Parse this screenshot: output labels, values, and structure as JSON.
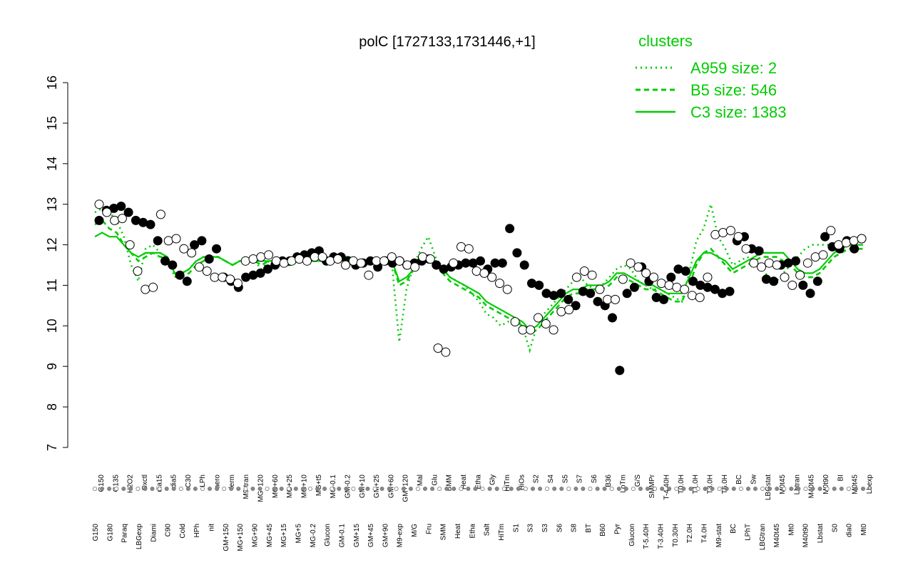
{
  "chart_data": {
    "type": "line",
    "title": "polC [1727133,1731446,+1]",
    "xlabel": "",
    "ylabel": "",
    "ylim": [
      7,
      16
    ],
    "yticks": [
      7,
      8,
      9,
      10,
      11,
      12,
      13,
      14,
      15,
      16
    ],
    "grid": false,
    "legend": {
      "title": "clusters",
      "placement": "top-right",
      "color": "#00cc00",
      "entries": [
        {
          "label": "A959 size: 2",
          "style": "dotted"
        },
        {
          "label": "B5 size: 546",
          "style": "dashed"
        },
        {
          "label": "C3 size: 1383",
          "style": "solid"
        }
      ]
    },
    "x_tick_labels": [
      {
        "top": "G150",
        "bottom": "G150"
      },
      {
        "top": "G135",
        "bottom": "G180"
      },
      {
        "top": "H2O2",
        "bottom": "Paraq"
      },
      {
        "top": "Oxctl",
        "bottom": "LBGexp"
      },
      {
        "top": "dia15",
        "bottom": "Diami"
      },
      {
        "top": "dia5",
        "bottom": "C90"
      },
      {
        "top": "C30",
        "bottom": "Cold"
      },
      {
        "top": "LPh",
        "bottom": "HPh"
      },
      {
        "top": "aero",
        "bottom": "nit"
      },
      {
        "top": "ferm",
        "bottom": "GM+150"
      },
      {
        "top": "M9-tran",
        "bottom": "MG+150"
      },
      {
        "top": "MG+120",
        "bottom": "MG+90"
      },
      {
        "top": "MG+60",
        "bottom": "MG+45"
      },
      {
        "top": "MG+25",
        "bottom": "MG+15"
      },
      {
        "top": "MG+10",
        "bottom": "MG+5"
      },
      {
        "top": "MG+t5",
        "bottom": "MG-0.2"
      },
      {
        "top": "MG-0.1",
        "bottom": "Glucon"
      },
      {
        "top": "GM-0.2",
        "bottom": "GM-0.1"
      },
      {
        "top": "GM+10",
        "bottom": "GM+15"
      },
      {
        "top": "GM+25",
        "bottom": "GM+45"
      },
      {
        "top": "GM+60",
        "bottom": "GM+90"
      },
      {
        "top": "GM+120",
        "bottom": "M9-exp"
      },
      {
        "top": "Mal",
        "bottom": "M/G"
      },
      {
        "top": "Glu",
        "bottom": "Fru"
      },
      {
        "top": "BMM",
        "bottom": "SMM"
      },
      {
        "top": "Heat",
        "bottom": "Heat"
      },
      {
        "top": "Etha",
        "bottom": "Etha"
      },
      {
        "top": "Gly",
        "bottom": "Salt"
      },
      {
        "top": "HiTm",
        "bottom": "HiTm"
      },
      {
        "top": "HiOs",
        "bottom": "S1"
      },
      {
        "top": "S2",
        "bottom": "S3"
      },
      {
        "top": "S4",
        "bottom": "S3"
      },
      {
        "top": "S5",
        "bottom": "S6"
      },
      {
        "top": "S7",
        "bottom": "S8"
      },
      {
        "top": "S6",
        "bottom": "BT"
      },
      {
        "top": "B36",
        "bottom": "B60"
      },
      {
        "top": "LoTm",
        "bottom": "Pyr"
      },
      {
        "top": "G/S",
        "bottom": "Glucon"
      },
      {
        "top": "SMMPr",
        "bottom": "T-5.40H"
      },
      {
        "top": "T-4.40H",
        "bottom": "T-3.40H"
      },
      {
        "top": "T0.0H",
        "bottom": "T0.30H"
      },
      {
        "top": "T1.0H",
        "bottom": "T2.0H"
      },
      {
        "top": "T3.0H",
        "bottom": "T4.0H"
      },
      {
        "top": "T5.0H",
        "bottom": "M9-stat"
      },
      {
        "top": "BC",
        "bottom": "BC"
      },
      {
        "top": "Sw",
        "bottom": "LPhT"
      },
      {
        "top": "LBGstat",
        "bottom": "LBGtran"
      },
      {
        "top": "M0t45",
        "bottom": "M40t45"
      },
      {
        "top": "Lbtran",
        "bottom": "Mt0"
      },
      {
        "top": "M40t45",
        "bottom": "M40t90"
      },
      {
        "top": "M0t90",
        "bottom": "Lbstat"
      },
      {
        "top": "BI",
        "bottom": "S0"
      },
      {
        "top": "M0t45",
        "bottom": "dia0"
      },
      {
        "top": "Lbexp",
        "bottom": "Mt0"
      }
    ],
    "series": [
      {
        "name": "C3 size: 1383",
        "style": "solid",
        "color": "#00cc00",
        "values": [
          12.2,
          12.3,
          12.2,
          12.2,
          12.0,
          11.8,
          11.7,
          11.8,
          11.8,
          11.8,
          11.7,
          11.3,
          11.3,
          11.4,
          11.6,
          11.7,
          11.7,
          11.7,
          11.6,
          11.5,
          11.6,
          11.6,
          11.6,
          11.6,
          11.6,
          11.6,
          11.5,
          11.5,
          11.6,
          11.6,
          11.6,
          11.6,
          11.6,
          11.6,
          11.7,
          11.7,
          11.6,
          11.6,
          11.6,
          11.6,
          11.6,
          11.6,
          11.1,
          11.2,
          11.4,
          11.6,
          11.6,
          11.6,
          11.4,
          11.2,
          11.1,
          11.0,
          10.9,
          10.8,
          10.6,
          10.5,
          10.4,
          10.3,
          10.2,
          10.1,
          9.9,
          10.0,
          10.2,
          10.4,
          10.6,
          10.8,
          10.9,
          10.9,
          11.0,
          11.0,
          11.0,
          11.1,
          11.3,
          11.3,
          11.2,
          11.1,
          11.0,
          11.0,
          10.9,
          10.8,
          10.8,
          10.8,
          11.2,
          11.6,
          11.8,
          11.8,
          11.7,
          11.6,
          11.4,
          11.5,
          11.6,
          11.7,
          11.8,
          11.8,
          11.8,
          11.8,
          11.6,
          11.4,
          11.3,
          11.3,
          11.4,
          11.6,
          11.8,
          11.9,
          12.0,
          12.0,
          12.0
        ]
      },
      {
        "name": "B5 size: 546",
        "style": "dashed",
        "color": "#00cc00",
        "values": [
          12.5,
          12.6,
          12.4,
          12.3,
          12.0,
          11.8,
          11.6,
          11.7,
          11.8,
          11.7,
          11.7,
          11.3,
          11.2,
          11.3,
          11.5,
          11.6,
          11.7,
          11.7,
          11.6,
          11.5,
          11.6,
          11.6,
          11.6,
          11.5,
          11.6,
          11.6,
          11.5,
          11.5,
          11.6,
          11.6,
          11.6,
          11.6,
          11.6,
          11.6,
          11.7,
          11.7,
          11.6,
          11.5,
          11.6,
          11.6,
          11.6,
          11.6,
          11.0,
          11.1,
          11.4,
          11.6,
          11.6,
          11.6,
          11.3,
          11.1,
          11.0,
          10.9,
          10.8,
          10.7,
          10.5,
          10.4,
          10.3,
          10.2,
          10.1,
          10.0,
          9.8,
          9.9,
          10.1,
          10.3,
          10.5,
          10.7,
          10.8,
          10.8,
          10.9,
          10.9,
          10.9,
          11.0,
          11.2,
          11.2,
          11.1,
          11.0,
          10.9,
          10.9,
          10.8,
          10.7,
          10.6,
          10.6,
          11.0,
          11.5,
          11.8,
          11.9,
          11.7,
          11.5,
          11.3,
          11.4,
          11.5,
          11.6,
          11.7,
          11.7,
          11.7,
          11.6,
          11.5,
          11.3,
          11.2,
          11.2,
          11.3,
          11.5,
          11.7,
          11.8,
          11.9,
          11.9,
          11.9
        ]
      },
      {
        "name": "A959 size: 2",
        "style": "dotted",
        "color": "#00cc00",
        "values": [
          12.8,
          12.9,
          12.8,
          12.6,
          12.2,
          11.5,
          11.1,
          11.9,
          12.0,
          11.8,
          11.7,
          11.2,
          11.3,
          11.4,
          11.6,
          11.7,
          11.7,
          11.7,
          11.6,
          11.5,
          11.6,
          11.6,
          11.6,
          11.4,
          11.6,
          11.6,
          11.5,
          11.6,
          11.6,
          11.6,
          11.6,
          11.6,
          11.6,
          11.6,
          11.7,
          11.7,
          11.6,
          11.6,
          11.6,
          11.6,
          11.6,
          11.5,
          9.6,
          10.9,
          11.5,
          11.9,
          12.2,
          11.7,
          11.4,
          11.2,
          11.1,
          11.0,
          10.8,
          10.6,
          10.3,
          10.2,
          10.0,
          10.1,
          10.2,
          10.0,
          9.4,
          10.0,
          10.3,
          10.5,
          10.7,
          10.9,
          11.1,
          11.2,
          11.0,
          10.9,
          11.0,
          11.2,
          11.4,
          11.5,
          11.4,
          11.1,
          11.0,
          10.9,
          10.9,
          10.8,
          10.7,
          10.6,
          11.3,
          12.1,
          12.4,
          13.0,
          12.2,
          11.9,
          11.5,
          11.6,
          11.7,
          11.6,
          11.4,
          11.2,
          11.1,
          11.3,
          11.5,
          11.7,
          11.9,
          12.0,
          12.0,
          12.0,
          12.0,
          12.0,
          12.0,
          12.1,
          12.1
        ]
      }
    ],
    "points": {
      "filled": [
        12.6,
        12.85,
        12.9,
        12.95,
        12.8,
        12.6,
        12.55,
        12.5,
        12.1,
        11.6,
        11.5,
        11.25,
        11.1,
        12.0,
        12.1,
        11.65,
        11.9,
        11.2,
        11.1,
        10.95,
        11.2,
        11.25,
        11.3,
        11.4,
        11.5,
        11.6,
        11.6,
        11.7,
        11.75,
        11.8,
        11.85,
        11.6,
        11.7,
        11.7,
        11.6,
        11.5,
        11.55,
        11.6,
        11.45,
        11.6,
        11.55,
        11.6,
        11.5,
        11.55,
        11.6,
        11.65,
        11.5,
        11.4,
        11.45,
        11.5,
        11.55,
        11.55,
        11.6,
        11.4,
        11.55,
        11.55,
        12.4,
        11.8,
        11.5,
        11.05,
        11.0,
        10.8,
        10.75,
        10.8,
        10.65,
        10.5,
        10.85,
        10.8,
        10.6,
        10.5,
        10.2,
        8.9,
        10.8,
        10.95,
        11.45,
        11.1,
        10.7,
        10.65,
        11.2,
        11.4,
        11.35,
        11.1,
        11.0,
        10.95,
        10.9,
        10.8,
        10.85,
        12.1,
        12.2,
        11.9,
        11.85,
        11.15,
        11.1,
        11.5,
        11.55,
        11.6,
        11.0,
        10.8,
        11.1,
        12.2,
        11.95,
        11.9,
        12.1,
        11.9,
        12.15
      ],
      "open": [
        13.0,
        12.8,
        12.6,
        12.65,
        12.0,
        11.35,
        10.9,
        10.95,
        12.75,
        12.1,
        12.15,
        11.9,
        11.8,
        11.45,
        11.35,
        11.2,
        11.2,
        11.15,
        11.05,
        11.6,
        11.65,
        11.7,
        11.75,
        11.6,
        11.55,
        11.6,
        11.65,
        11.6,
        11.7,
        11.7,
        11.6,
        11.65,
        11.5,
        11.6,
        11.55,
        11.25,
        11.6,
        11.6,
        11.7,
        11.6,
        11.5,
        11.45,
        11.7,
        11.65,
        9.45,
        9.35,
        11.55,
        11.95,
        11.9,
        11.35,
        11.3,
        11.2,
        11.05,
        10.9,
        10.1,
        9.9,
        9.9,
        10.2,
        10.05,
        9.9,
        10.35,
        10.4,
        11.2,
        11.35,
        11.25,
        10.9,
        10.65,
        10.65,
        11.15,
        11.55,
        11.45,
        11.3,
        11.2,
        11.05,
        11.0,
        10.95,
        10.9,
        10.75,
        10.7,
        11.2,
        12.25,
        12.3,
        12.35,
        12.2,
        11.9,
        11.55,
        11.45,
        11.55,
        11.5,
        11.2,
        11.0,
        11.25,
        11.55,
        11.7,
        11.75,
        12.35,
        12.0,
        12.05,
        12.1,
        12.15
      ]
    }
  }
}
